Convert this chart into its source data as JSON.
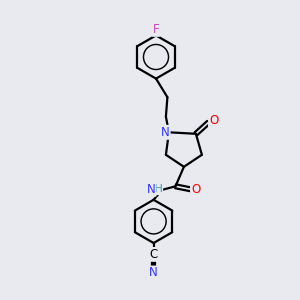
{
  "bg_color": "#e8eaf0",
  "atom_colors": {
    "C": "#000000",
    "N": "#3333ff",
    "O": "#ff0000",
    "F": "#cc44bb",
    "H": "#339999"
  },
  "bond_color": "#000000",
  "bond_lw": 1.6,
  "label_fontsize": 8.5,
  "label_fontsize_small": 7.5
}
